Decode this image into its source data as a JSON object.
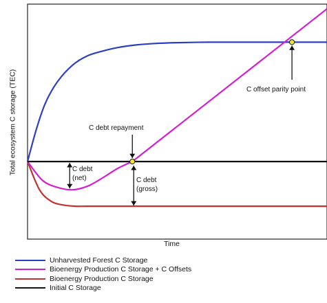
{
  "chart_data": {
    "type": "line",
    "title": "",
    "ylabel": "Total ecosystem C storage (TEC)",
    "xlabel": "Time",
    "xlim": [
      0,
      1
    ],
    "ylim": [
      0,
      1
    ],
    "grid": false,
    "legend_placement": "below",
    "series": [
      {
        "name": "Unharvested Forest C Storage",
        "color": "#2b3fc4",
        "x": [
          0,
          0.03,
          0.06,
          0.1,
          0.15,
          0.2,
          0.25,
          0.3,
          0.36,
          0.42,
          0.5,
          0.6,
          0.7,
          0.8,
          0.9,
          1.0
        ],
        "y": [
          0.33,
          0.47,
          0.58,
          0.67,
          0.74,
          0.78,
          0.8,
          0.815,
          0.826,
          0.832,
          0.836,
          0.838,
          0.838,
          0.838,
          0.838,
          0.838
        ]
      },
      {
        "name": "Bioenergy Production C Storage + C Offsets",
        "color": "#d21fd4",
        "x": [
          0,
          0.05,
          0.1,
          0.15,
          0.2,
          0.25,
          0.3,
          0.35,
          1.0
        ],
        "y": [
          0.33,
          0.25,
          0.22,
          0.21,
          0.225,
          0.26,
          0.3,
          0.33,
          0.98
        ]
      },
      {
        "name": "Bioenergy Production C Storage",
        "color": "#c42f2f",
        "x": [
          0,
          0.04,
          0.08,
          0.12,
          0.16,
          0.2,
          0.3,
          0.5,
          1.0
        ],
        "y": [
          0.33,
          0.21,
          0.16,
          0.145,
          0.14,
          0.14,
          0.14,
          0.14,
          0.14
        ]
      },
      {
        "name": "Initial C Storage",
        "color": "#111111",
        "x": [
          0,
          1.0
        ],
        "y": [
          0.33,
          0.33
        ]
      }
    ],
    "points": [
      {
        "name": "C debt repayment",
        "x": 0.35,
        "y": 0.33
      },
      {
        "name": "C offset parity point",
        "x": 0.883,
        "y": 0.838
      }
    ],
    "annotations": {
      "c_debt_repayment": "C debt repayment",
      "c_offset_parity": "C offset parity point",
      "c_debt_net": "C debt\n(net)",
      "c_debt_gross": "C debt\n(gross)"
    },
    "point_fill": "#f2ea2c"
  }
}
